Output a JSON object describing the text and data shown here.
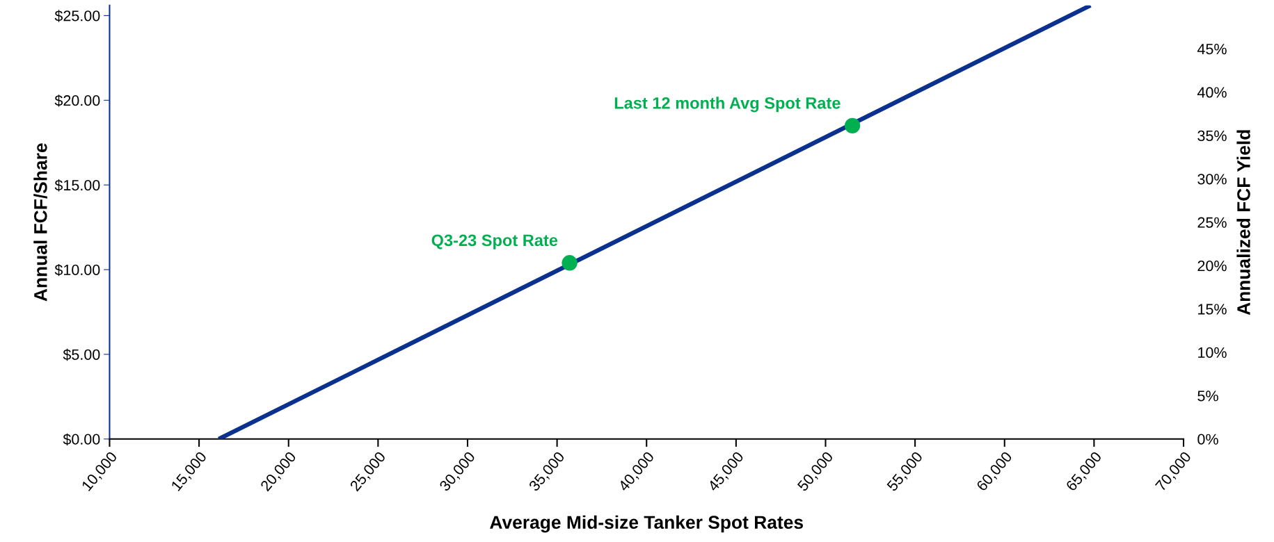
{
  "chart_data": {
    "type": "line",
    "xlabel": "Average Mid-size Tanker Spot Rates",
    "ylabel": "Annual FCF/Share",
    "y2label": "Annualized FCF Yield",
    "series": [
      {
        "color": "#0b318f",
        "x": [
          16100,
          64800
        ],
        "values": [
          0,
          25.6
        ]
      },
      {
        "type": "scatter",
        "color": "#00b050",
        "x": [
          35700,
          51500
        ],
        "values": [
          10.4,
          18.5
        ]
      }
    ],
    "annotations": [
      {
        "text": "Q3-23 Spot Rate",
        "x": 35700,
        "y": 10.4
      },
      {
        "text": "Last 12 month Avg Spot Rate",
        "x": 51500,
        "y": 18.5
      }
    ],
    "xlim": [
      10000,
      70000
    ],
    "xticks": [
      {
        "value": 10000,
        "label": "10,000"
      },
      {
        "value": 15000,
        "label": "15,000"
      },
      {
        "value": 20000,
        "label": "20,000"
      },
      {
        "value": 25000,
        "label": "25,000"
      },
      {
        "value": 30000,
        "label": "30,000"
      },
      {
        "value": 35000,
        "label": "35,000"
      },
      {
        "value": 40000,
        "label": "40,000"
      },
      {
        "value": 45000,
        "label": "45,000"
      },
      {
        "value": 50000,
        "label": "50,000"
      },
      {
        "value": 55000,
        "label": "55,000"
      },
      {
        "value": 60000,
        "label": "60,000"
      },
      {
        "value": 65000,
        "label": "65,000"
      },
      {
        "value": 70000,
        "label": "70,000"
      }
    ],
    "ylim": [
      0,
      25.6
    ],
    "yticks": [
      {
        "value": 0,
        "label": "$0.00"
      },
      {
        "value": 5,
        "label": "$5.00"
      },
      {
        "value": 10,
        "label": "$10.00"
      },
      {
        "value": 15,
        "label": "$15.00"
      },
      {
        "value": 20,
        "label": "$20.00"
      },
      {
        "value": 25,
        "label": "$25.00"
      }
    ],
    "y2lim": [
      0,
      50
    ],
    "y2ticks": [
      {
        "value": 0,
        "label": "0%"
      },
      {
        "value": 5,
        "label": "5%"
      },
      {
        "value": 10,
        "label": "10%"
      },
      {
        "value": 15,
        "label": "15%"
      },
      {
        "value": 20,
        "label": "20%"
      },
      {
        "value": 25,
        "label": "25%"
      },
      {
        "value": 30,
        "label": "30%"
      },
      {
        "value": 35,
        "label": "35%"
      },
      {
        "value": 40,
        "label": "40%"
      },
      {
        "value": 45,
        "label": "45%"
      }
    ],
    "grid": false,
    "legend": false
  }
}
